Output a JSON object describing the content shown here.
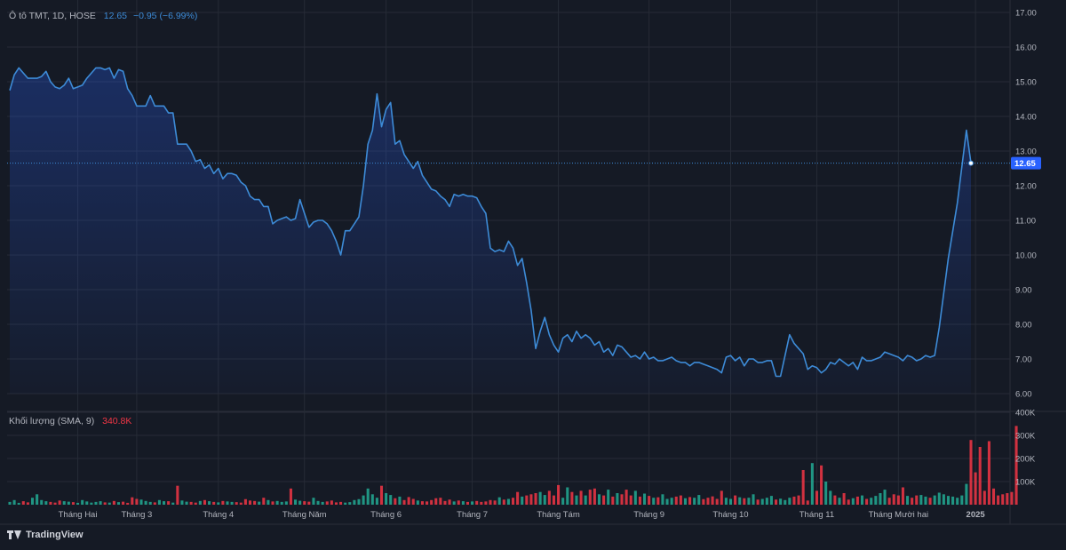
{
  "header": {
    "symbol": "Ô tô TMT, 1D, HOSE",
    "last_value": "12.65",
    "change": "−0.95 (−6.99%)"
  },
  "volume_panel": {
    "label": "Khối lượng (SMA, 9)",
    "value": "340.8K"
  },
  "brand": {
    "name": "TradingView"
  },
  "colors": {
    "background": "#151a25",
    "line": "#3d8bd7",
    "up_volume": "#22ab94",
    "down_volume": "#f23645",
    "grid": "#262b36",
    "axis_text": "#b2b5be",
    "last_price_tag": "#2962ff"
  },
  "chart_data": [
    {
      "type": "area",
      "ylim": [
        6,
        17
      ],
      "y_ticks": [
        "6.00",
        "7.00",
        "8.00",
        "9.00",
        "10.00",
        "11.00",
        "12.00",
        "13.00",
        "14.00",
        "15.00",
        "16.00",
        "17.00"
      ],
      "x_labels": [
        "Tháng Hai",
        "Tháng 3",
        "Tháng 4",
        "Tháng Năm",
        "Tháng 6",
        "Tháng 7",
        "Tháng Tám",
        "Tháng 9",
        "Tháng 10",
        "Tháng 11",
        "Tháng Mười hai",
        "2025"
      ],
      "last_value_label": "12.65",
      "grid": true,
      "values": [
        14.75,
        15.2,
        15.4,
        15.25,
        15.1,
        15.1,
        15.1,
        15.15,
        15.3,
        15.0,
        14.85,
        14.8,
        14.9,
        15.1,
        14.8,
        14.85,
        14.9,
        15.1,
        15.25,
        15.4,
        15.4,
        15.35,
        15.4,
        15.1,
        15.35,
        15.3,
        14.8,
        14.6,
        14.3,
        14.3,
        14.3,
        14.6,
        14.3,
        14.3,
        14.3,
        14.1,
        14.1,
        13.2,
        13.2,
        13.2,
        13.0,
        12.7,
        12.75,
        12.5,
        12.6,
        12.35,
        12.5,
        12.2,
        12.35,
        12.35,
        12.3,
        12.1,
        12.0,
        11.7,
        11.6,
        11.6,
        11.4,
        11.4,
        10.9,
        11.0,
        11.05,
        11.1,
        11.0,
        11.05,
        11.6,
        11.2,
        10.8,
        10.95,
        11.0,
        11.0,
        10.9,
        10.7,
        10.4,
        10.0,
        10.7,
        10.7,
        10.9,
        11.1,
        12.0,
        13.2,
        13.6,
        14.65,
        13.7,
        14.2,
        14.4,
        13.2,
        13.3,
        12.9,
        12.7,
        12.5,
        12.7,
        12.3,
        12.1,
        11.9,
        11.85,
        11.7,
        11.6,
        11.4,
        11.75,
        11.7,
        11.75,
        11.7,
        11.7,
        11.65,
        11.4,
        11.2,
        10.2,
        10.1,
        10.15,
        10.1,
        10.4,
        10.2,
        9.7,
        9.9,
        9.2,
        8.4,
        7.3,
        7.8,
        8.2,
        7.7,
        7.4,
        7.2,
        7.6,
        7.7,
        7.5,
        7.8,
        7.6,
        7.7,
        7.6,
        7.4,
        7.5,
        7.2,
        7.3,
        7.1,
        7.4,
        7.35,
        7.2,
        7.05,
        7.1,
        7.0,
        7.2,
        7.0,
        7.05,
        6.95,
        6.95,
        7.0,
        7.05,
        6.95,
        6.9,
        6.9,
        6.8,
        6.9,
        6.9,
        6.85,
        6.8,
        6.75,
        6.7,
        6.6,
        7.05,
        7.1,
        6.95,
        7.05,
        6.8,
        7.0,
        7.0,
        6.9,
        6.9,
        6.95,
        6.95,
        6.5,
        6.5,
        7.1,
        7.7,
        7.45,
        7.3,
        7.15,
        6.7,
        6.8,
        6.75,
        6.6,
        6.7,
        6.9,
        6.85,
        7.0,
        6.9,
        6.8,
        6.9,
        6.7,
        7.05,
        6.95,
        6.95,
        7.0,
        7.05,
        7.2,
        7.15,
        7.1,
        7.05,
        6.95,
        7.1,
        7.05,
        6.95,
        7.0,
        7.1,
        7.05,
        7.1,
        7.9,
        8.9,
        9.9,
        10.7,
        11.5,
        12.55,
        13.6,
        12.65
      ]
    },
    {
      "type": "bar",
      "series_name": "Khối lượng (SMA, 9)",
      "ylim": [
        0,
        400000
      ],
      "y_ticks": [
        "0",
        "100K",
        "200K",
        "300K",
        "400K"
      ],
      "values": [
        12000,
        20000,
        8000,
        15000,
        10000,
        30000,
        45000,
        20000,
        15000,
        12000,
        9000,
        18000,
        15000,
        13000,
        11000,
        8000,
        20000,
        14000,
        9000,
        12000,
        15000,
        10000,
        9000,
        16000,
        11000,
        13000,
        8000,
        32000,
        25000,
        22000,
        16000,
        12000,
        10000,
        20000,
        15000,
        15000,
        9000,
        82000,
        18000,
        13000,
        12000,
        9000,
        16000,
        20000,
        15000,
        12000,
        10000,
        16000,
        14000,
        12000,
        11000,
        9000,
        24000,
        18000,
        16000,
        13000,
        30000,
        20000,
        14000,
        16000,
        12000,
        14000,
        70000,
        22000,
        17000,
        15000,
        13000,
        30000,
        16000,
        12000,
        14000,
        18000,
        10000,
        12000,
        9000,
        11000,
        20000,
        24000,
        40000,
        70000,
        45000,
        30000,
        82000,
        50000,
        42000,
        28000,
        35000,
        20000,
        33000,
        25000,
        18000,
        15000,
        14000,
        20000,
        28000,
        30000,
        16000,
        22000,
        14000,
        18000,
        15000,
        12000,
        14000,
        16000,
        12000,
        14000,
        20000,
        18000,
        32000,
        22000,
        25000,
        30000,
        55000,
        35000,
        40000,
        45000,
        50000,
        55000,
        42000,
        60000,
        40000,
        85000,
        30000,
        75000,
        55000,
        40000,
        60000,
        40000,
        65000,
        70000,
        45000,
        40000,
        65000,
        35000,
        50000,
        45000,
        65000,
        40000,
        60000,
        35000,
        48000,
        38000,
        30000,
        32000,
        45000,
        25000,
        30000,
        35000,
        40000,
        28000,
        33000,
        30000,
        42000,
        24000,
        30000,
        36000,
        25000,
        60000,
        30000,
        25000,
        40000,
        32000,
        28000,
        30000,
        45000,
        22000,
        25000,
        30000,
        38000,
        22000,
        26000,
        20000,
        30000,
        35000,
        40000,
        150000,
        18000,
        180000,
        60000,
        170000,
        100000,
        60000,
        40000,
        30000,
        50000,
        22000,
        28000,
        35000,
        40000,
        25000,
        30000,
        38000,
        50000,
        65000,
        30000,
        45000,
        40000,
        75000,
        38000,
        30000,
        40000,
        42000,
        35000,
        30000,
        40000,
        52000,
        45000,
        38000,
        35000,
        30000,
        40000,
        90000,
        280000,
        140000,
        250000,
        60000,
        275000,
        70000,
        40000,
        45000,
        50000,
        55000,
        340800
      ]
    }
  ]
}
